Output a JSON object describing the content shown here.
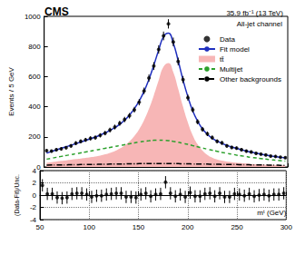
{
  "chart_data": [
    {
      "type": "line",
      "title": "CMS",
      "subtitle": "35.9 fb⁻¹ (13 TeV)",
      "annotations": [
        "All-jet channel"
      ],
      "ylabel": "Events / 5 GeV",
      "x": [
        52.5,
        57.5,
        62.5,
        67.5,
        72.5,
        77.5,
        82.5,
        87.5,
        92.5,
        97.5,
        102.5,
        107.5,
        112.5,
        117.5,
        122.5,
        127.5,
        132.5,
        137.5,
        142.5,
        147.5,
        152.5,
        157.5,
        162.5,
        167.5,
        172.5,
        177.5,
        182.5,
        187.5,
        192.5,
        197.5,
        202.5,
        207.5,
        212.5,
        217.5,
        222.5,
        227.5,
        232.5,
        237.5,
        242.5,
        247.5,
        252.5,
        257.5,
        262.5,
        267.5,
        272.5,
        277.5,
        282.5,
        287.5,
        292.5,
        297.5
      ],
      "xlim": [
        50,
        300
      ],
      "xticks": [
        50,
        100,
        150,
        200,
        250,
        300
      ],
      "ylim": [
        0,
        1000
      ],
      "yticks": [
        0,
        200,
        400,
        600,
        800,
        1000
      ],
      "tick_labels": "y",
      "grid": false,
      "legend": "upper right",
      "series": [
        {
          "name": "Data",
          "type": "scatter",
          "marker": "circle",
          "color": "#000000",
          "values": [
            108,
            105,
            115,
            120,
            128,
            140,
            158,
            170,
            180,
            190,
            195,
            210,
            225,
            245,
            265,
            290,
            315,
            340,
            380,
            430,
            505,
            590,
            670,
            780,
            870,
            950,
            830,
            700,
            580,
            460,
            380,
            300,
            250,
            220,
            195,
            170,
            160,
            140,
            130,
            125,
            115,
            105,
            100,
            90,
            85,
            80,
            72,
            70,
            65,
            62
          ],
          "errors": [
            10,
            10,
            11,
            11,
            11,
            12,
            13,
            13,
            13,
            14,
            14,
            14,
            15,
            16,
            16,
            17,
            18,
            18,
            19,
            21,
            22,
            24,
            26,
            28,
            29,
            31,
            29,
            26,
            24,
            21,
            19,
            17,
            16,
            15,
            14,
            13,
            13,
            12,
            11,
            11,
            11,
            10,
            10,
            9,
            9,
            9,
            8,
            8,
            8,
            8
          ]
        },
        {
          "name": "Fit model",
          "type": "line",
          "line_style": "solid",
          "color": "#1f2fbf",
          "values": [
            92,
            103,
            113,
            124,
            134,
            145,
            155,
            166,
            176,
            188,
            199,
            212,
            226,
            243,
            261,
            284,
            310,
            345,
            386,
            438,
            502,
            582,
            675,
            776,
            865,
            888,
            822,
            706,
            578,
            466,
            372,
            304,
            253,
            217,
            191,
            172,
            156,
            144,
            133,
            123,
            114,
            106,
            98,
            92,
            85,
            79,
            73,
            69,
            64,
            60
          ]
        },
        {
          "name": "tt̄",
          "type": "area",
          "color": "#f7b6b6",
          "values": [
            28,
            32,
            36,
            40,
            44,
            48,
            52,
            56,
            60,
            65,
            70,
            76,
            84,
            94,
            106,
            122,
            142,
            170,
            205,
            250,
            310,
            385,
            475,
            575,
            665,
            690,
            630,
            520,
            400,
            295,
            210,
            150,
            108,
            80,
            62,
            50,
            42,
            36,
            32,
            28,
            25,
            22,
            20,
            18,
            16,
            14,
            13,
            12,
            11,
            10
          ]
        },
        {
          "name": "Multijet",
          "type": "line",
          "line_style": "dashed",
          "color": "#2ca02c",
          "values": [
            52,
            58,
            64,
            70,
            76,
            82,
            88,
            94,
            100,
            106,
            112,
            118,
            124,
            130,
            136,
            142,
            148,
            154,
            160,
            166,
            170,
            174,
            177,
            178,
            177,
            175,
            170,
            164,
            157,
            150,
            142,
            134,
            126,
            118,
            111,
            104,
            97,
            91,
            85,
            79,
            74,
            69,
            64,
            60,
            56,
            52,
            48,
            45,
            42,
            39
          ]
        },
        {
          "name": "Other backgrounds",
          "type": "line",
          "line_style": "dashdot",
          "color": "#000000",
          "values": [
            12,
            13,
            13,
            14,
            14,
            15,
            15,
            16,
            16,
            17,
            17,
            18,
            18,
            19,
            19,
            20,
            20,
            21,
            21,
            22,
            22,
            23,
            23,
            23,
            23,
            23,
            22,
            22,
            21,
            21,
            20,
            20,
            19,
            19,
            18,
            18,
            17,
            17,
            16,
            16,
            15,
            15,
            14,
            14,
            13,
            13,
            12,
            12,
            11,
            11
          ]
        }
      ]
    },
    {
      "type": "scatter",
      "xlabel": "mᵗ (GeV)",
      "ylabel": "(Data-Fit)/Unc.",
      "x": [
        52.5,
        57.5,
        62.5,
        67.5,
        72.5,
        77.5,
        82.5,
        87.5,
        92.5,
        97.5,
        102.5,
        107.5,
        112.5,
        117.5,
        122.5,
        127.5,
        132.5,
        137.5,
        142.5,
        147.5,
        152.5,
        157.5,
        162.5,
        167.5,
        172.5,
        177.5,
        182.5,
        187.5,
        192.5,
        197.5,
        202.5,
        207.5,
        212.5,
        217.5,
        222.5,
        227.5,
        232.5,
        237.5,
        242.5,
        247.5,
        252.5,
        257.5,
        262.5,
        267.5,
        272.5,
        277.5,
        282.5,
        287.5,
        292.5,
        297.5
      ],
      "xlim": [
        50,
        300
      ],
      "xticks": [
        50,
        100,
        150,
        200,
        250,
        300
      ],
      "ylim": [
        -4,
        4
      ],
      "yticks": [
        -4,
        -2,
        0,
        2,
        4
      ],
      "grid": true,
      "marker": "circle",
      "color": "#000000",
      "values": [
        1.6,
        0.2,
        0.2,
        -0.4,
        -0.5,
        -0.4,
        0.2,
        0.3,
        0.3,
        0.1,
        -0.3,
        -0.1,
        -0.1,
        0.1,
        0.2,
        0.3,
        0.3,
        -0.3,
        -0.3,
        -0.4,
        0.1,
        0.3,
        -0.2,
        0.1,
        0.2,
        2.1,
        0.3,
        -0.2,
        0.1,
        -0.3,
        0.4,
        -0.2,
        -0.2,
        0.2,
        0.3,
        -0.2,
        0.3,
        -0.3,
        -0.3,
        0.2,
        0.1,
        -0.1,
        0.2,
        -0.2,
        0.0,
        0.1,
        -0.1,
        0.1,
        0.1,
        0.3
      ],
      "errors": [
        1,
        1,
        1,
        1,
        1,
        1,
        1,
        1,
        1,
        1,
        1,
        1,
        1,
        1,
        1,
        1,
        1,
        1,
        1,
        1,
        1,
        1,
        1,
        1,
        1,
        1,
        1,
        1,
        1,
        1,
        1,
        1,
        1,
        1,
        1,
        1,
        1,
        1,
        1,
        1,
        1,
        1,
        1,
        1,
        1,
        1,
        1,
        1,
        1,
        1
      ]
    }
  ]
}
